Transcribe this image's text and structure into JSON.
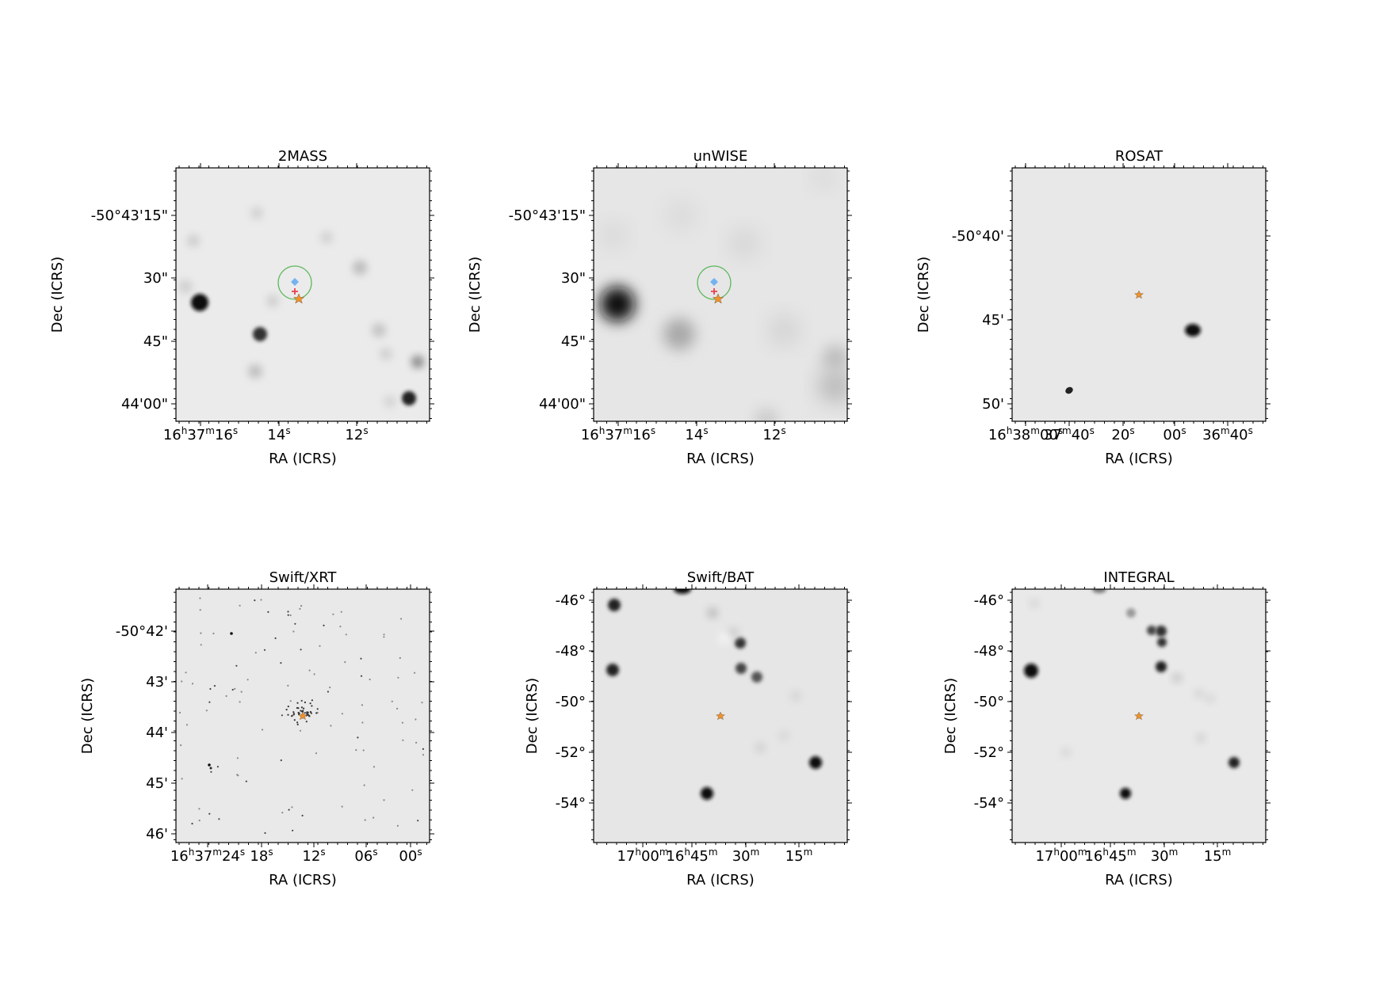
{
  "panels": [
    {
      "title": "2MASS",
      "xlabel": "RA (ICRS)",
      "ylabel": "Dec (ICRS)",
      "yticks": [
        "-50°43'15\"",
        "30\"",
        "45\"",
        "44'00\""
      ],
      "xticks": [
        {
          "h": "16",
          "m": "37",
          "s": "16"
        },
        {
          "s": "14"
        },
        {
          "s": "12"
        }
      ],
      "background": "#ebebeb",
      "markers": [
        "green-circle",
        "blue-diamond",
        "red-plus",
        "orange-star"
      ]
    },
    {
      "title": "unWISE",
      "xlabel": "RA (ICRS)",
      "ylabel": "Dec (ICRS)",
      "yticks": [
        "-50°43'15\"",
        "30\"",
        "45\"",
        "44'00\""
      ],
      "xticks": [
        {
          "h": "16",
          "m": "37",
          "s": "16"
        },
        {
          "s": "14"
        },
        {
          "s": "12"
        }
      ],
      "background": "#e6e6e6",
      "markers": [
        "green-circle",
        "blue-diamond",
        "red-plus",
        "orange-star"
      ]
    },
    {
      "title": "ROSAT",
      "xlabel": "RA (ICRS)",
      "ylabel": "Dec (ICRS)",
      "yticks": [
        "-50°40'",
        "45'",
        "50'"
      ],
      "xticks": [
        {
          "h": "16",
          "m": "38",
          "s": "00"
        },
        {
          "m": "37",
          "s": "40"
        },
        {
          "s": "20"
        },
        {
          "s": "00"
        },
        {
          "m": "36",
          "s": "40"
        }
      ],
      "background": "#e8e8e8",
      "markers": [
        "blue-diamond",
        "orange-star"
      ]
    },
    {
      "title": "Swift/XRT",
      "xlabel": "RA (ICRS)",
      "ylabel": "Dec (ICRS)",
      "yticks": [
        "-50°42'",
        "43'",
        "44'",
        "45'",
        "46'"
      ],
      "xticks": [
        {
          "h": "16",
          "m": "37",
          "s": "24"
        },
        {
          "s": "18"
        },
        {
          "s": "12"
        },
        {
          "s": "06"
        },
        {
          "s": "00"
        }
      ],
      "background": "#e9e9e9",
      "markers": [
        "blue-diamond",
        "orange-star"
      ]
    },
    {
      "title": "Swift/BAT",
      "xlabel": "RA (ICRS)",
      "ylabel": "Dec (ICRS)",
      "yticks": [
        "-46°",
        "-48°",
        "-50°",
        "-52°",
        "-54°"
      ],
      "xticks": [
        {
          "h": "17",
          "m": "00"
        },
        {
          "h": "16",
          "m": "45"
        },
        {
          "m": "30"
        },
        {
          "m": "15"
        }
      ],
      "background": "#e6e6e6",
      "markers": [
        "blue-diamond",
        "orange-star"
      ]
    },
    {
      "title": "INTEGRAL",
      "xlabel": "RA (ICRS)",
      "ylabel": "Dec (ICRS)",
      "yticks": [
        "-46°",
        "-48°",
        "-50°",
        "-52°",
        "-54°"
      ],
      "xticks": [
        {
          "h": "17",
          "m": "00"
        },
        {
          "h": "16",
          "m": "45"
        },
        {
          "m": "30"
        },
        {
          "m": "15"
        }
      ],
      "background": "#e9e9e9",
      "markers": [
        "blue-diamond",
        "orange-star"
      ]
    }
  ],
  "colors": {
    "circle": "#5cb85c",
    "diamond": "#73b3f0",
    "plus": "#e8424f",
    "star": "#f0922a"
  }
}
